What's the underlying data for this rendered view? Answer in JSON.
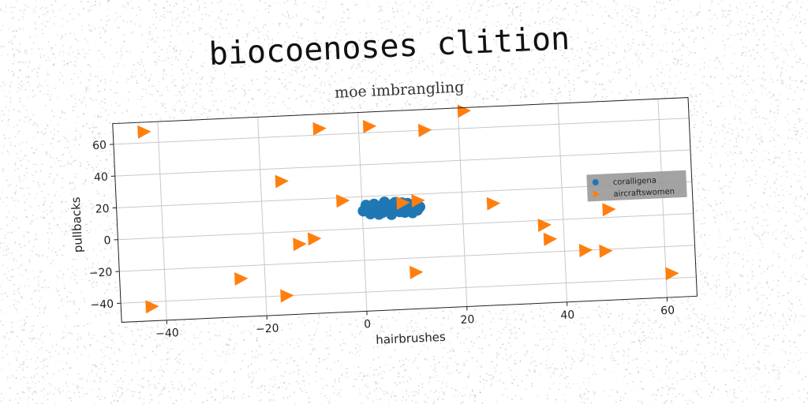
{
  "chart_data": {
    "type": "scatter",
    "title": "biocoenoses clition",
    "subtitle": "moe imbrangling",
    "xlabel": "hairbrushes",
    "ylabel": "pullbacks",
    "xlim": [
      -49,
      66
    ],
    "ylim": [
      -52,
      73
    ],
    "xticks": [
      -40,
      -20,
      0,
      20,
      40,
      60
    ],
    "yticks": [
      -40,
      -20,
      0,
      20,
      40,
      60
    ],
    "grid": true,
    "legend_position": "center-right",
    "series": [
      {
        "name": "coralligena",
        "marker": "circle",
        "color": "#1f77b4",
        "x": [
          0.2,
          1.0,
          1.8,
          2.5,
          3.2,
          4.0,
          4.8,
          5.5,
          6.2,
          7.0,
          7.8,
          8.5,
          9.2,
          10.0,
          10.8,
          11.5,
          0.8,
          1.6,
          2.4,
          3.3,
          4.1,
          5.0,
          5.8,
          6.6,
          7.5,
          8.3,
          9.1,
          10.0,
          10.9,
          3.0,
          4.5,
          6.0,
          7.5,
          9.0,
          2.0,
          5.2,
          8.0,
          1.2,
          11.0,
          6.8
        ],
        "y": [
          11.0,
          12.5,
          10.0,
          13.0,
          11.5,
          9.5,
          12.0,
          14.0,
          10.5,
          13.5,
          11.0,
          9.0,
          12.5,
          10.0,
          11.5,
          12.0,
          14.5,
          9.0,
          15.0,
          8.5,
          14.0,
          10.5,
          8.0,
          15.5,
          9.5,
          13.0,
          14.5,
          8.5,
          13.0,
          12.0,
          16.0,
          11.0,
          12.0,
          10.5,
          12.0,
          12.5,
          15.0,
          10.5,
          10.0,
          13.5
        ]
      },
      {
        "name": "aircraftswomen",
        "marker": "triangle-right",
        "color": "#ff7f0e",
        "x": [
          -43,
          -8,
          2,
          13,
          21,
          -16,
          -4,
          8,
          11,
          26,
          -13,
          -10,
          36,
          49,
          -25,
          37,
          44,
          48,
          10,
          -43,
          -16,
          61
        ],
        "y": [
          67,
          64,
          64,
          60,
          71,
          32,
          18,
          15,
          16,
          12,
          -8,
          -5,
          -3,
          5,
          -28,
          -12,
          -20,
          -21,
          -29,
          -43,
          -40,
          -37
        ]
      }
    ]
  }
}
